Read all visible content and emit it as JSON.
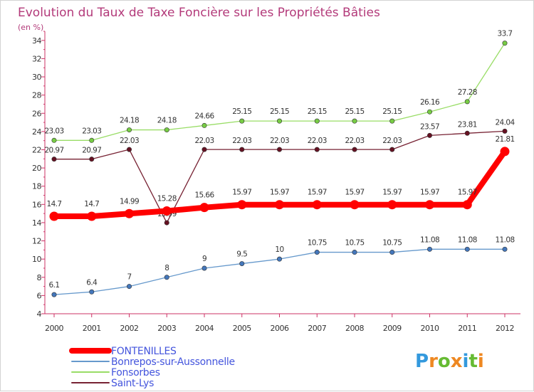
{
  "chart_data": {
    "type": "line",
    "title": "Evolution du Taux de Taxe Foncière sur les Propriétés Bâties",
    "subtitle": "(en %)",
    "xlabel": "",
    "ylabel": "",
    "ylim": [
      4,
      35
    ],
    "yticks": [
      4,
      6,
      8,
      10,
      12,
      14,
      16,
      18,
      20,
      22,
      24,
      26,
      28,
      30,
      32,
      34
    ],
    "categories": [
      "2000",
      "2001",
      "2002",
      "2003",
      "2004",
      "2005",
      "2006",
      "2007",
      "2008",
      "2009",
      "2010",
      "2011",
      "2012"
    ],
    "series": [
      {
        "name": "Fonsorbes",
        "color": "#99dd66",
        "marker": "#77cc44",
        "values": [
          23.03,
          23.03,
          24.18,
          24.18,
          24.66,
          25.15,
          25.15,
          25.15,
          25.15,
          25.15,
          26.16,
          27.28,
          33.7
        ],
        "labels": [
          "23.03",
          "23.03",
          "24.18",
          "24.18",
          "24.66",
          "25.15",
          "25.15",
          "25.15",
          "25.15",
          "25.15",
          "26.16",
          "27.28",
          "33.7"
        ]
      },
      {
        "name": "Saint-Lys",
        "color": "#772233",
        "marker": "#661122",
        "values": [
          20.97,
          20.97,
          22.03,
          13.99,
          22.03,
          22.03,
          22.03,
          22.03,
          22.03,
          22.03,
          23.57,
          23.81,
          24.04
        ],
        "labels": [
          "20.97",
          "20.97",
          "22.03",
          "13.99",
          "22.03",
          "22.03",
          "22.03",
          "22.03",
          "22.03",
          "22.03",
          "23.57",
          "23.81",
          "24.04"
        ]
      },
      {
        "name": "Bonrepos-sur-Aussonnelle",
        "color": "#6699cc",
        "marker": "#4477bb",
        "values": [
          6.1,
          6.4,
          7,
          8,
          9,
          9.5,
          10,
          10.75,
          10.75,
          10.75,
          11.08,
          11.08,
          11.08
        ],
        "labels": [
          "6.1",
          "6.4",
          "7",
          "8",
          "9",
          "9.5",
          "10",
          "10.75",
          "10.75",
          "10.75",
          "11.08",
          "11.08",
          "11.08"
        ]
      },
      {
        "name": "FONTENILLES",
        "color": "#ff0000",
        "marker": "#ff0000",
        "values": [
          14.7,
          14.7,
          14.99,
          15.28,
          15.66,
          15.97,
          15.97,
          15.97,
          15.97,
          15.97,
          15.97,
          15.97,
          21.81
        ],
        "labels": [
          "14.7",
          "14.7",
          "14.99",
          "15.28",
          "15.66",
          "15.97",
          "15.97",
          "15.97",
          "15.97",
          "15.97",
          "15.97",
          "15.97",
          "21.81"
        ]
      }
    ],
    "legend": [
      "FONTENILLES",
      "Bonrepos-sur-Aussonnelle",
      "Fonsorbes",
      "Saint-Lys"
    ],
    "legend_colors": {
      "FONTENILLES": "#ff0000",
      "Bonrepos-sur-Aussonnelle": "#6699cc",
      "Fonsorbes": "#99dd66",
      "Saint-Lys": "#772233"
    },
    "legend_text_color": "#4455dd",
    "grid": false
  },
  "brand": {
    "letters": [
      "P",
      "r",
      "o",
      "x",
      "i",
      "t",
      "i"
    ],
    "colors": [
      "#3399dd",
      "#ee8822",
      "#66bb33",
      "#ee8822",
      "#3399dd",
      "#66bb33",
      "#ee8822"
    ]
  },
  "colors": {
    "axis": "#cc3366",
    "title": "#b33a7a"
  }
}
